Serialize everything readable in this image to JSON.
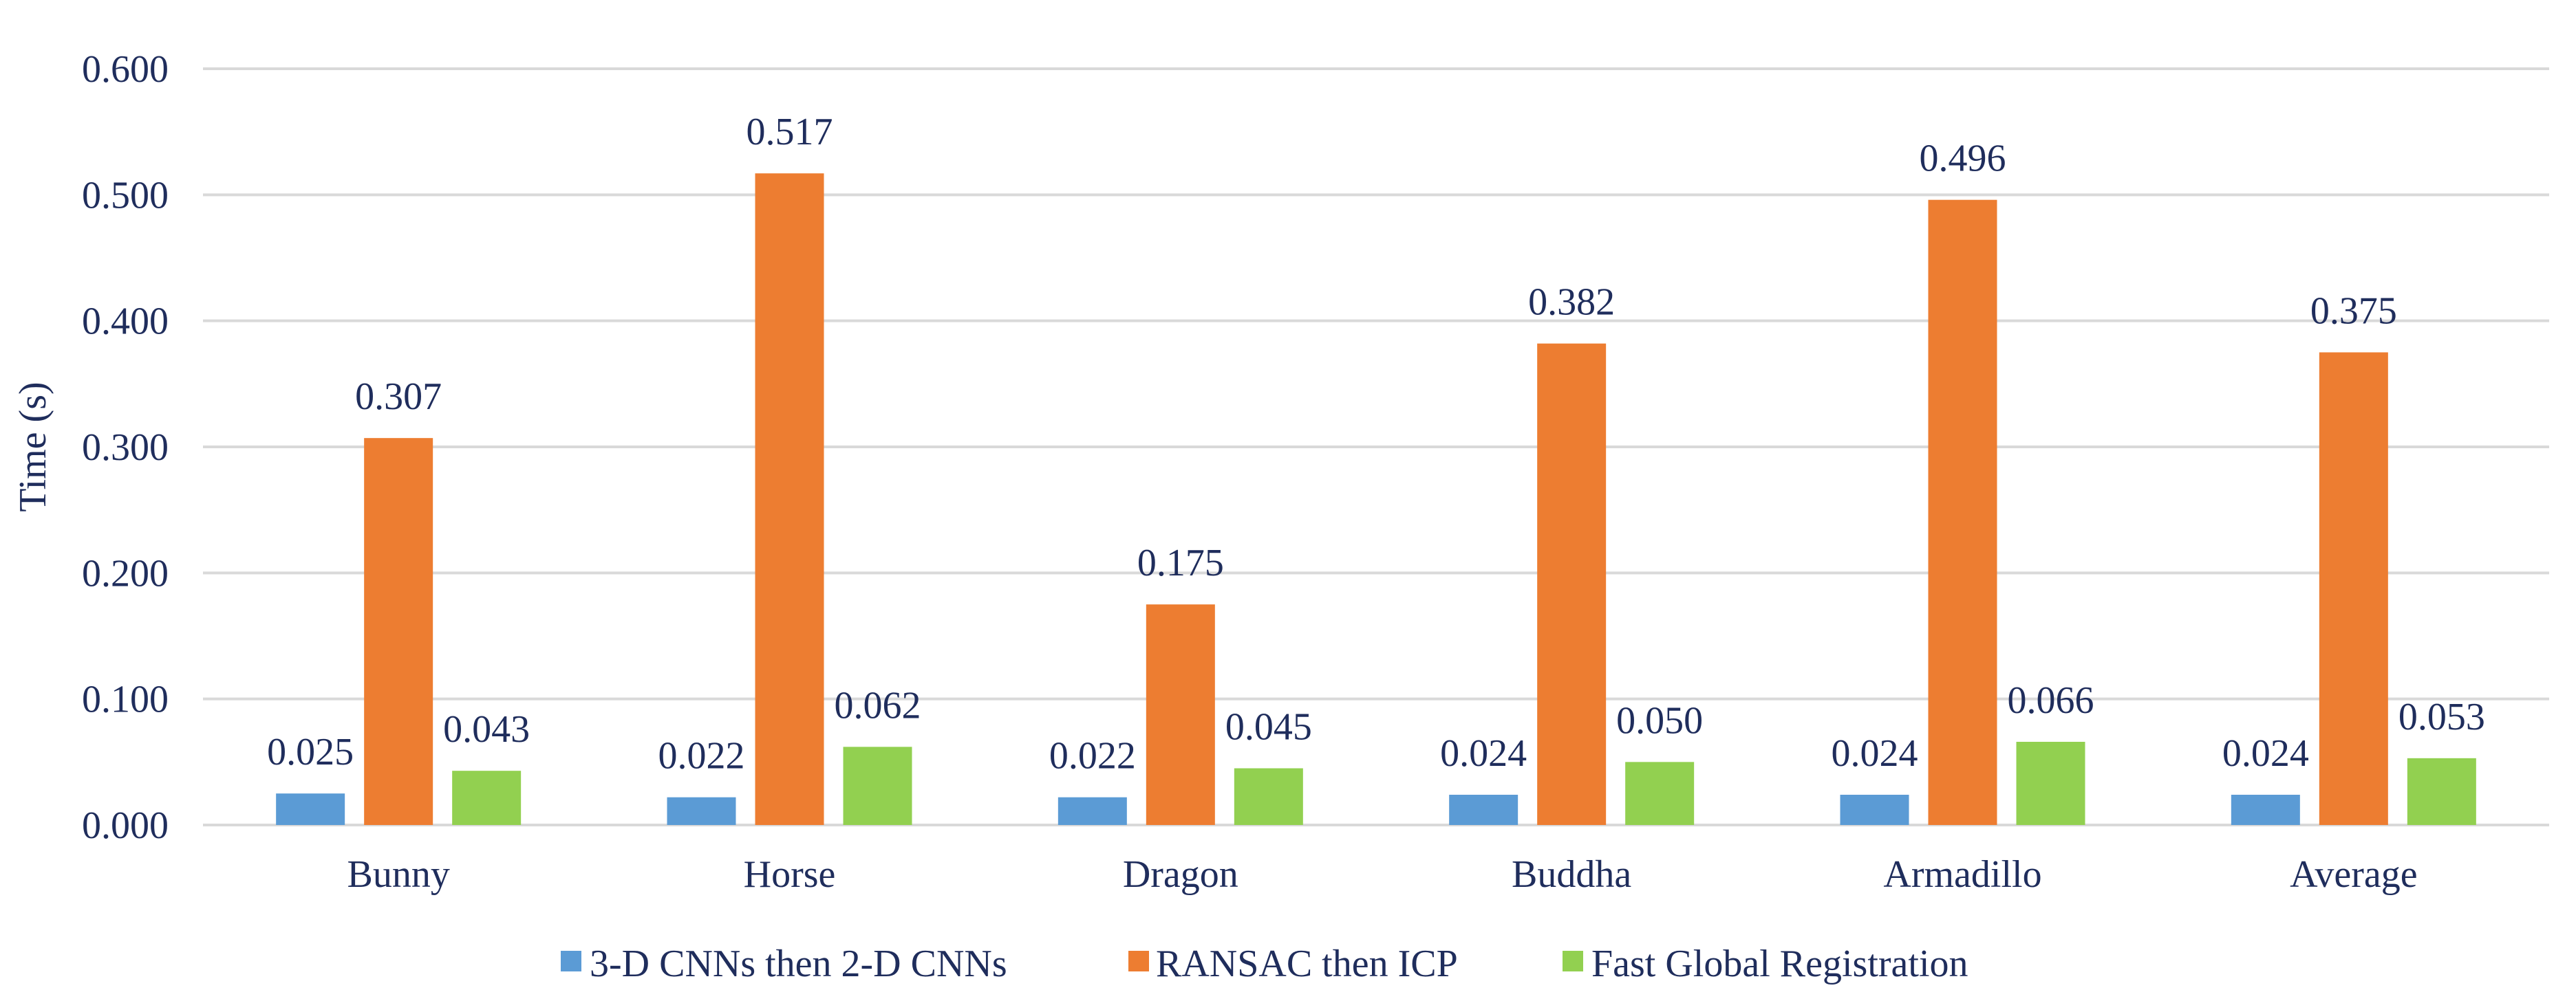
{
  "chart_data": {
    "type": "bar",
    "title": "",
    "xlabel": "",
    "ylabel": "Time (s)",
    "ylim": [
      0,
      0.6
    ],
    "yticks": [
      "0.000",
      "0.100",
      "0.200",
      "0.300",
      "0.400",
      "0.500",
      "0.600"
    ],
    "grid": true,
    "legend_position": "bottom",
    "categories": [
      "Bunny",
      "Horse",
      "Dragon",
      "Buddha",
      "Armadillo",
      "Average"
    ],
    "series": [
      {
        "name": "3-D CNNs then 2-D CNNs",
        "color": "#5b9bd5",
        "values": [
          0.025,
          0.022,
          0.022,
          0.024,
          0.024,
          0.024
        ],
        "labels": [
          "0.025",
          "0.022",
          "0.022",
          "0.024",
          "0.024",
          "0.024"
        ]
      },
      {
        "name": "RANSAC then ICP",
        "color": "#ed7d31",
        "values": [
          0.307,
          0.517,
          0.175,
          0.382,
          0.496,
          0.375
        ],
        "labels": [
          "0.307",
          "0.517",
          "0.175",
          "0.382",
          "0.496",
          "0.375"
        ]
      },
      {
        "name": "Fast Global Registration",
        "color": "#92d050",
        "values": [
          0.043,
          0.062,
          0.045,
          0.05,
          0.066,
          0.053
        ],
        "labels": [
          "0.043",
          "0.062",
          "0.045",
          "0.050",
          "0.066",
          "0.053"
        ]
      }
    ]
  }
}
